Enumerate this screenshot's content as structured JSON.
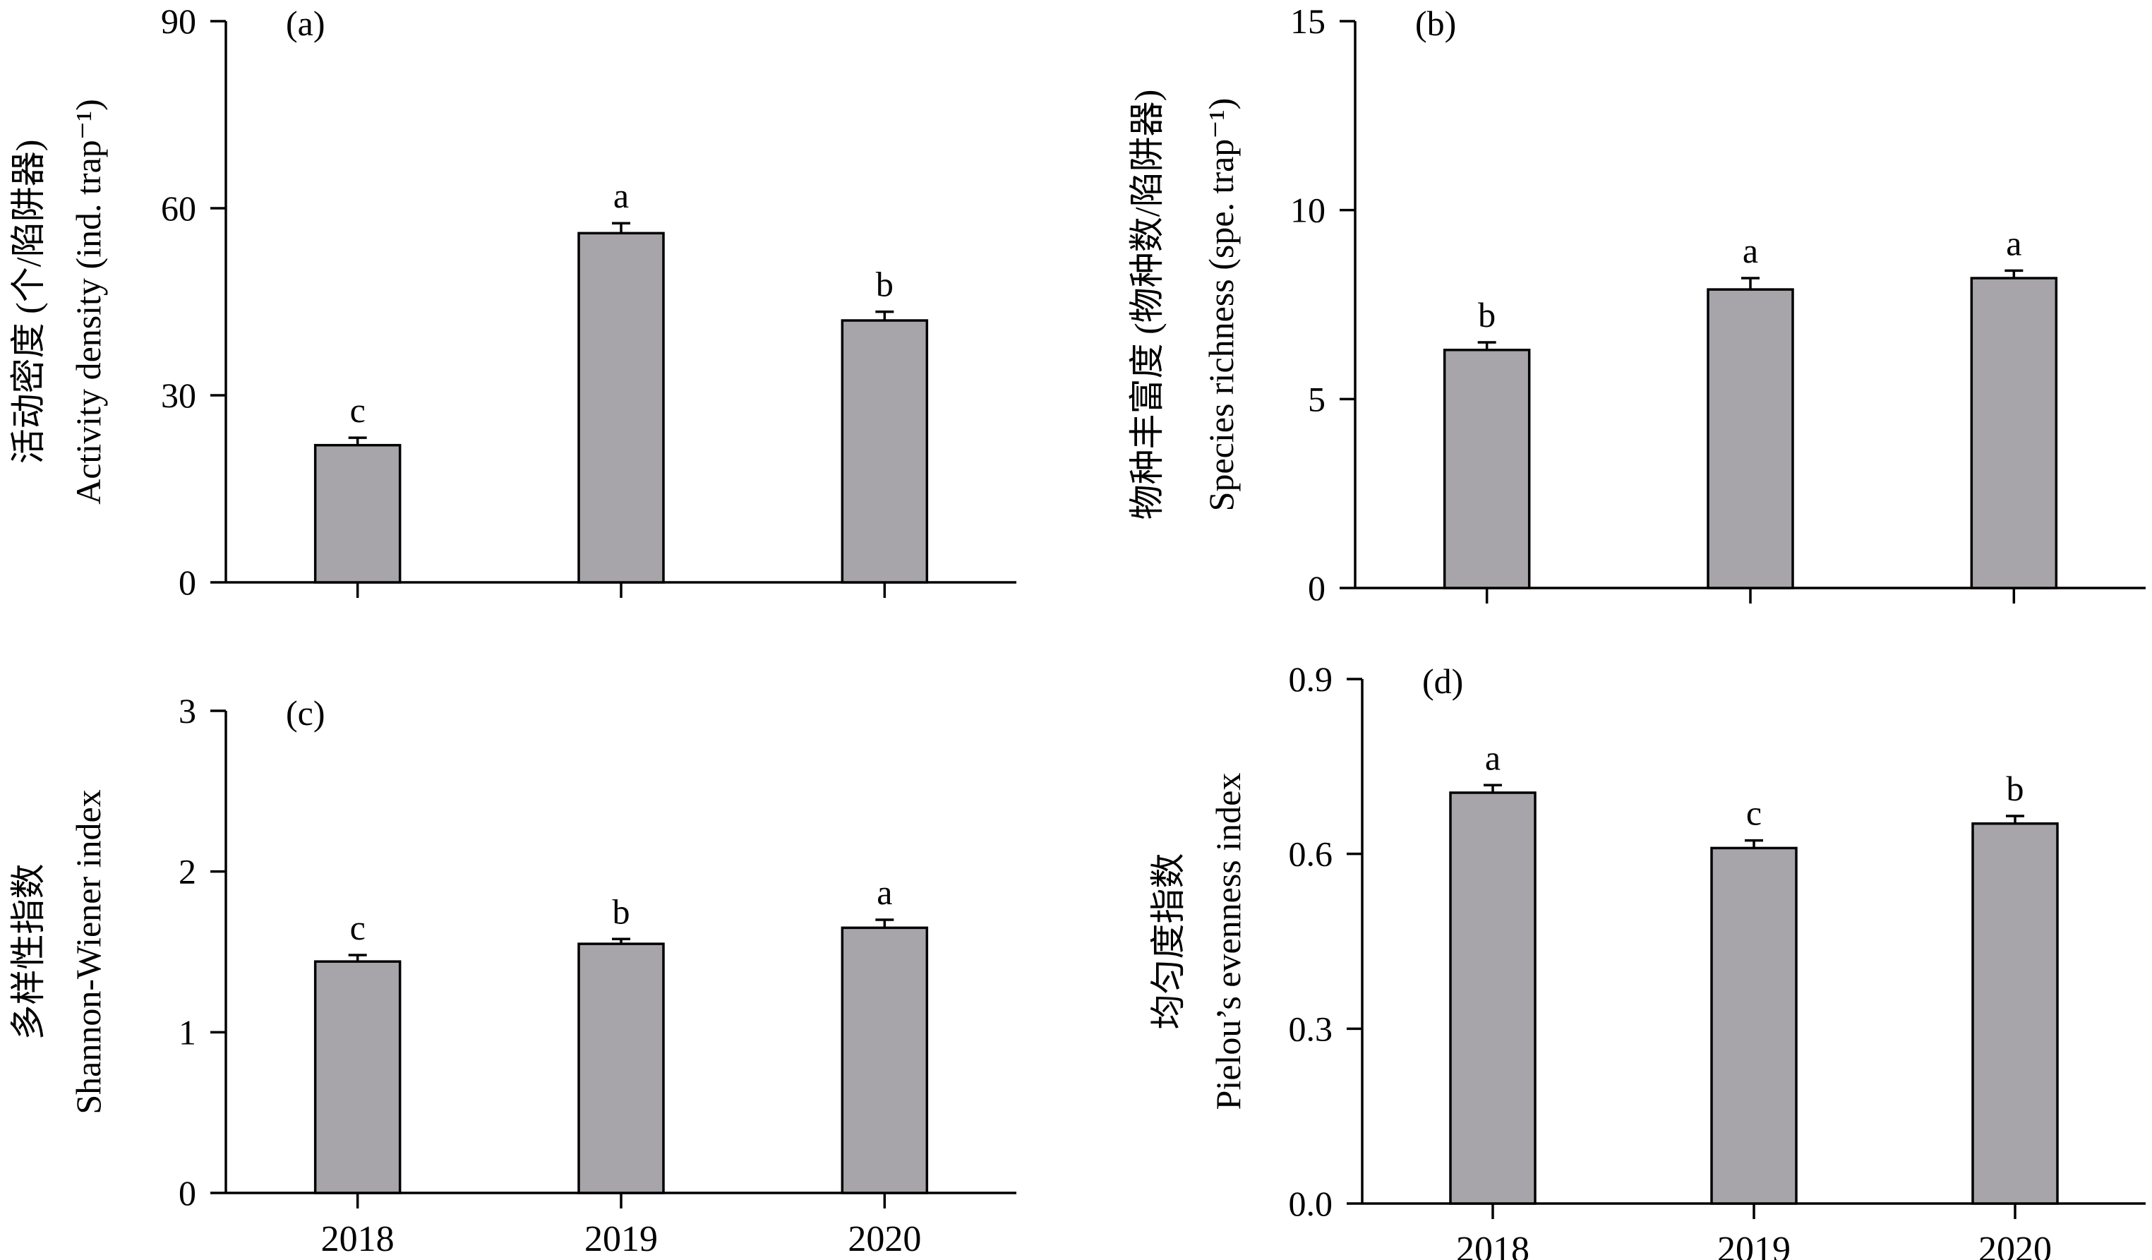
{
  "colors": {
    "bar": "#a7a5aa"
  },
  "chart_data": [
    {
      "type": "bar",
      "panel": "(a)",
      "categories": [
        "2018",
        "2019",
        "2020"
      ],
      "values": [
        22,
        56,
        42
      ],
      "errors": [
        1.2,
        1.6,
        1.4
      ],
      "letters": [
        "c",
        "a",
        "b"
      ],
      "ylabel": [
        "活动密度 (个/陷阱器)",
        "Activity density (ind. trap⁻¹)"
      ],
      "ylim": [
        0,
        90
      ],
      "yticks": [
        0,
        30,
        60,
        90
      ],
      "ytick_labels": [
        "0",
        "30",
        "60",
        "90"
      ],
      "show_xticklabels": false
    },
    {
      "type": "bar",
      "panel": "(b)",
      "categories": [
        "2018",
        "2019",
        "2020"
      ],
      "values": [
        6.3,
        7.9,
        8.2
      ],
      "errors": [
        0.2,
        0.3,
        0.2
      ],
      "letters": [
        "b",
        "a",
        "a"
      ],
      "ylabel": [
        "物种丰富度 (物种数/陷阱器)",
        "Species richness (spe. trap⁻¹)"
      ],
      "ylim": [
        0,
        15
      ],
      "yticks": [
        0,
        5,
        10,
        15
      ],
      "ytick_labels": [
        "0",
        "5",
        "10",
        "15"
      ],
      "show_xticklabels": false
    },
    {
      "type": "bar",
      "panel": "(c)",
      "categories": [
        "2018",
        "2019",
        "2020"
      ],
      "values": [
        1.44,
        1.55,
        1.65
      ],
      "errors": [
        0.04,
        0.03,
        0.05
      ],
      "letters": [
        "c",
        "b",
        "a"
      ],
      "ylabel": [
        "多样性指数",
        "Shannon-Wiener index"
      ],
      "ylim": [
        0,
        3
      ],
      "yticks": [
        0,
        1,
        2,
        3
      ],
      "ytick_labels": [
        "0",
        "1",
        "2",
        "3"
      ],
      "show_xticklabels": true
    },
    {
      "type": "bar",
      "panel": "(d)",
      "categories": [
        "2018",
        "2019",
        "2020"
      ],
      "values": [
        0.705,
        0.61,
        0.652
      ],
      "errors": [
        0.013,
        0.013,
        0.013
      ],
      "letters": [
        "a",
        "c",
        "b"
      ],
      "ylabel": [
        "均匀度指数",
        "Pielou’s evenness index"
      ],
      "ylim": [
        0,
        0.9
      ],
      "yticks": [
        0,
        0.3,
        0.6,
        0.9
      ],
      "ytick_labels": [
        "0.0",
        "0.3",
        "0.6",
        "0.9"
      ],
      "show_xticklabels": true
    }
  ]
}
